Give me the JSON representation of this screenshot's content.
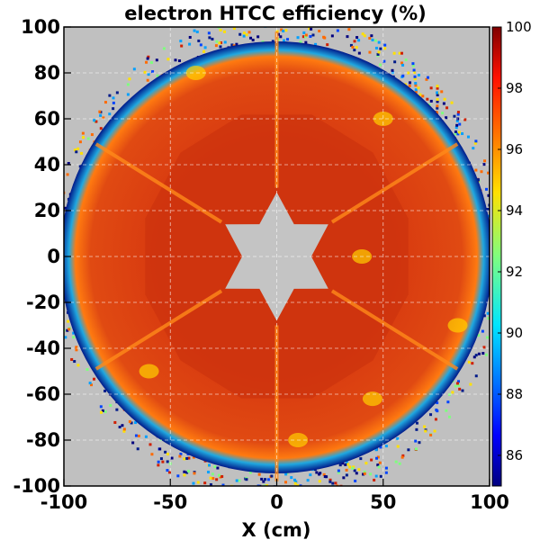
{
  "chart_data": {
    "type": "heatmap",
    "title": "electron HTCC efficiency (%)",
    "xlabel": "X (cm)",
    "ylabel": "",
    "xlim": [
      -100,
      100
    ],
    "ylim": [
      -100,
      100
    ],
    "x_ticks": [
      -100,
      -50,
      0,
      50,
      100
    ],
    "y_ticks": [
      100,
      80,
      60,
      40,
      20,
      0,
      -20,
      -40,
      -60,
      -80,
      -100
    ],
    "colorbar": {
      "range": [
        85,
        100
      ],
      "ticks": [
        100,
        98,
        96,
        94,
        92,
        90,
        88,
        86
      ],
      "colormap": "jet"
    },
    "grid": true,
    "background_color": "#c0c0c0",
    "description_values": {
      "outer_ring_radius_cm": 100,
      "inner_star_radius_cm": 28,
      "typical_efficiency_pct": 98,
      "sector_boundaries_deg": [
        30,
        90,
        150,
        210,
        270,
        330
      ]
    }
  }
}
